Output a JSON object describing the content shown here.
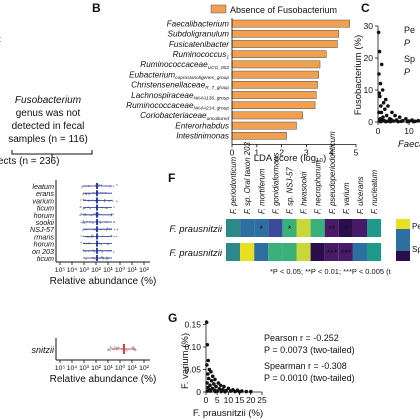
{
  "panels": {
    "b": "B",
    "c": "C",
    "f": "F",
    "g": "G"
  },
  "panel_a": {
    "box_text": [
      "Fusobacterium",
      "genus was not",
      "detected in fecal",
      "samples (n = 116)"
    ],
    "subjects_text": "ects (n = 236)",
    "species_labels": [
      "leatum",
      "erans",
      "varium",
      "ticum",
      "horum",
      "sookii",
      "NSJ-57",
      "rmans",
      "horum",
      "on 203",
      "ticum"
    ],
    "axis_ticks": [
      "10⁵",
      "10⁴",
      "10³",
      "10²",
      "10¹",
      "10⁰",
      "10¹",
      "10²"
    ],
    "axis_title": "Relative abundance (%)",
    "bottom_label": "snitzii",
    "bottom_axis_title": "Relative abundance (%)",
    "colors": {
      "marker": "#1c2f9c",
      "marker2": "#e03a3a",
      "box": "#999999"
    }
  },
  "chart_data": [
    {
      "type": "bar",
      "panel": "B",
      "legend": "Absence of Fusobacterium",
      "categories": [
        "Faecalibacterium",
        "Subdoligranulum",
        "Fusicatenibacter",
        "Ruminococcus_1",
        "Ruminococcaceae_UCG_002",
        "Eubacterium_coprostanoligenes_group",
        "Christensenellaceae_R_7_group",
        "Lachnospiraceae_NK4A136_group",
        "Ruminococcaceae_NK4A214_group",
        "Coriobacteriaceae_uncultured",
        "Enterorhabdus",
        "Intestinimonas"
      ],
      "label_main": [
        "Faecalibacterium",
        "Subdoligranulum",
        "Fusicatenibacter",
        "Ruminococcus",
        "Ruminococcaceae",
        "Eubacterium",
        "Christensenellaceae",
        "Lachnospiraceae",
        "Ruminococcaceae",
        "Coriobacteriaceae",
        "Enterorhabdus",
        "Intestinimonas"
      ],
      "label_sub": [
        "",
        "",
        "",
        "1",
        "UCG_002",
        "coprostanoligenes_group",
        "R_7_group",
        "NK4A136_group",
        "NK4A214_group",
        "uncultured",
        "",
        ""
      ],
      "values": [
        4.75,
        4.3,
        4.25,
        3.8,
        3.55,
        3.5,
        3.45,
        3.4,
        3.35,
        2.85,
        2.6,
        2.2
      ],
      "xlabel": "LDA score (log₁₀)",
      "xticks": [
        "0",
        "1",
        "2",
        "3",
        "4",
        "5"
      ],
      "xlim": [
        0,
        5
      ],
      "color": "#f0a050"
    },
    {
      "type": "scatter",
      "panel": "C",
      "ylabel": "Fusobacterium (%)",
      "xlabel_fragment": "Faeca",
      "yticks": [
        "0",
        "10",
        "20",
        "30"
      ],
      "xticks": [
        "0",
        "10"
      ],
      "ylim": [
        0,
        30
      ],
      "xlim": [
        0,
        20
      ],
      "stat_fragments": [
        "Pe",
        "P",
        "Sp",
        "P"
      ],
      "points": [
        [
          0.2,
          28
        ],
        [
          0.5,
          22
        ],
        [
          1.2,
          18
        ],
        [
          0.3,
          15
        ],
        [
          0.8,
          12
        ],
        [
          1.5,
          10
        ],
        [
          0.4,
          9
        ],
        [
          2.5,
          7
        ],
        [
          0.6,
          8
        ],
        [
          1.8,
          6
        ],
        [
          3.2,
          5
        ],
        [
          0.9,
          5
        ],
        [
          2.2,
          4
        ],
        [
          4.5,
          3
        ],
        [
          1.1,
          3
        ],
        [
          0.3,
          3
        ],
        [
          5.5,
          2
        ],
        [
          2.8,
          2
        ],
        [
          7,
          1.5
        ],
        [
          1.6,
          1.5
        ],
        [
          3.8,
          1
        ],
        [
          9,
          1
        ],
        [
          0.7,
          1
        ],
        [
          4.2,
          0.8
        ],
        [
          11,
          0.6
        ],
        [
          6,
          0.6
        ],
        [
          1.4,
          0.5
        ],
        [
          13,
          0.4
        ],
        [
          8,
          0.4
        ],
        [
          2,
          0.4
        ],
        [
          15,
          0.3
        ],
        [
          10,
          0.3
        ],
        [
          5,
          0.3
        ],
        [
          0.5,
          0.3
        ],
        [
          3,
          0.2
        ],
        [
          12,
          0.2
        ],
        [
          17,
          0.2
        ],
        [
          7.5,
          0.2
        ],
        [
          1,
          0.2
        ],
        [
          14,
          0.1
        ],
        [
          4,
          0.1
        ],
        [
          9.5,
          0.1
        ],
        [
          6.5,
          0.1
        ],
        [
          18,
          0.1
        ],
        [
          2.5,
          0.1
        ],
        [
          0.8,
          0.1
        ],
        [
          11.5,
          0.1
        ],
        [
          16,
          0.1
        ]
      ],
      "color": "#111111"
    },
    {
      "type": "heatmap",
      "panel": "F",
      "columns": [
        "F. periodonticum",
        "F. sp. Oral taxon 203",
        "F. mortiferum",
        "F. gonidiaformans",
        "F. sp. NSJ-57",
        "F. hwasookii",
        "F. necrophorum",
        "F. pseudoperiodonticum",
        "F. varium",
        "F. ulcerans",
        "F. nucleatum"
      ],
      "rows": [
        "F. prausnitzii",
        "F. prausnitzii"
      ],
      "cell_colors": [
        [
          "#2e8a8a",
          "#2c6fa0",
          "#2c6fa0",
          "#3b4a9a",
          "#3ab07a",
          "#c8d838",
          "#3ab07a",
          "#4a1a6a",
          "#2a0d4a",
          "#4a1a6a",
          "#1f9a8a"
        ],
        [
          "#2e8a8a",
          "#e8e020",
          "#2c6fa0",
          "#3ab07a",
          "#3ab07a",
          "#c8d838",
          "#2a0d4a",
          "#4a1a6a",
          "#4a1a6a",
          "#2c6fa0",
          "#1f9a8a"
        ]
      ],
      "marks": [
        [
          "",
          "",
          "*",
          "",
          "*",
          "",
          "",
          "**",
          "*",
          "",
          ""
        ],
        [
          "",
          "",
          "",
          "",
          "",
          "",
          "",
          "***",
          "***",
          "",
          ""
        ]
      ],
      "legend_fragments": [
        "Pear",
        "Spea"
      ],
      "footnote": "*P < 0.05; **P < 0.01; ***P < 0.005 (t"
    },
    {
      "type": "scatter",
      "panel": "G",
      "ylabel": "F. varium (%)",
      "xlabel": "F. prausnitzii (%)",
      "yticks": [
        "0",
        "0.05",
        "0.10",
        "0.15"
      ],
      "xticks": [
        "0",
        "5",
        "10",
        "15",
        "20",
        "25"
      ],
      "ylim": [
        0,
        0.16
      ],
      "xlim": [
        0,
        25
      ],
      "stats": [
        "Pearson r = -0.252",
        "P = 0.0073 (two-tailed)",
        "Spearman r = -0.308",
        "P = 0.0010 (two-tailed)"
      ],
      "points": [
        [
          0.3,
          0.155
        ],
        [
          0.6,
          0.105
        ],
        [
          1.0,
          0.07
        ],
        [
          0.4,
          0.06
        ],
        [
          1.5,
          0.05
        ],
        [
          2.2,
          0.045
        ],
        [
          0.8,
          0.04
        ],
        [
          3,
          0.035
        ],
        [
          1.2,
          0.03
        ],
        [
          4,
          0.028
        ],
        [
          2.5,
          0.025
        ],
        [
          5.5,
          0.02
        ],
        [
          0.5,
          0.02
        ],
        [
          3.5,
          0.018
        ],
        [
          6.5,
          0.015
        ],
        [
          1.8,
          0.015
        ],
        [
          8,
          0.012
        ],
        [
          4.5,
          0.012
        ],
        [
          0.9,
          0.01
        ],
        [
          10,
          0.008
        ],
        [
          2.8,
          0.008
        ],
        [
          6,
          0.007
        ],
        [
          12,
          0.005
        ],
        [
          7.5,
          0.005
        ],
        [
          1.4,
          0.005
        ],
        [
          14,
          0.004
        ],
        [
          3.8,
          0.004
        ],
        [
          9,
          0.003
        ],
        [
          16,
          0.002
        ],
        [
          5,
          0.002
        ],
        [
          11,
          0.002
        ],
        [
          0.7,
          0.002
        ],
        [
          2,
          0.002
        ],
        [
          13,
          0.001
        ],
        [
          18,
          0.001
        ],
        [
          6.8,
          0.001
        ],
        [
          20,
          0.001
        ],
        [
          4.2,
          0.001
        ],
        [
          15,
          0.0005
        ],
        [
          8.5,
          0.0005
        ]
      ],
      "color": "#111111"
    }
  ]
}
